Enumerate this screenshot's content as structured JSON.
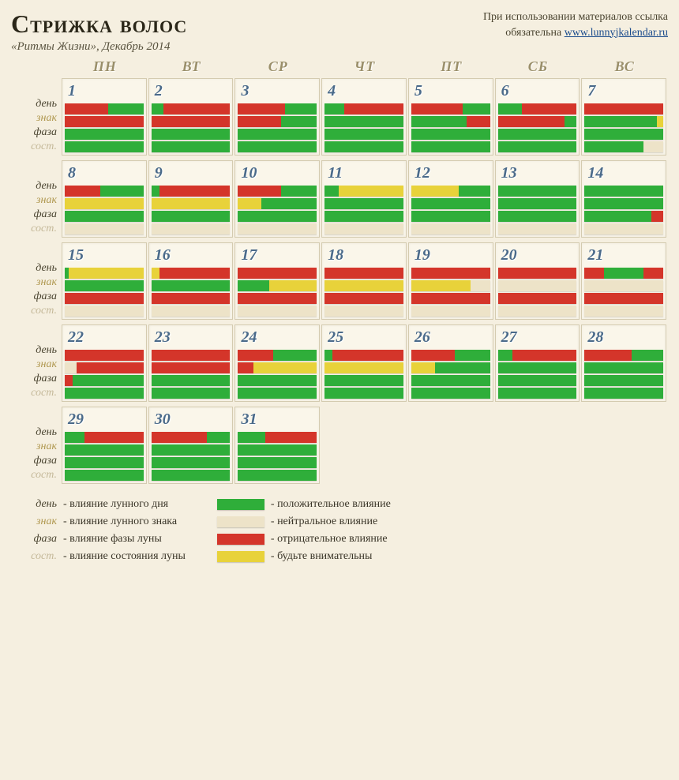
{
  "header": {
    "title": "Стрижка волос",
    "subtitle": "«Ритмы Жизни», Декабрь 2014",
    "credit_line1": "При использовании материалов ссылка",
    "credit_line2": "обязательна",
    "link_text": "www.lunnyjkalendar.ru"
  },
  "weekdays": [
    "ПН",
    "ВТ",
    "СР",
    "ЧТ",
    "ПТ",
    "СБ",
    "ВС"
  ],
  "row_labels": [
    "день",
    "знак",
    "фаза",
    "сост."
  ],
  "row_label_classes": [
    "lbl-day",
    "lbl-sign",
    "lbl-phase",
    "lbl-state"
  ],
  "colors": {
    "g": "#2fae3a",
    "r": "#d4352a",
    "y": "#e8d23a",
    "n": "#ede3c8",
    "bg": "#f5efe0",
    "cell": "#faf6ea",
    "border": "#d4cbb0"
  },
  "legend_left": [
    {
      "label": "день",
      "text": "- влияние лунного дня",
      "cls": "lbl-day"
    },
    {
      "label": "знак",
      "text": "- влияние лунного знака",
      "cls": "lbl-sign"
    },
    {
      "label": "фаза",
      "text": "- влияние фазы луны",
      "cls": "lbl-phase"
    },
    {
      "label": "сост.",
      "text": "- влияние состояния луны",
      "cls": "lbl-state"
    }
  ],
  "legend_right": [
    {
      "color": "g",
      "text": "- положительное влияние"
    },
    {
      "color": "n",
      "text": "- нейтральное влияние"
    },
    {
      "color": "r",
      "text": "- отрицательное влияние"
    },
    {
      "color": "y",
      "text": "- будьте внимательны"
    }
  ],
  "weeks": [
    [
      {
        "n": 1,
        "bars": [
          [
            [
              "r",
              0.55
            ],
            [
              "g",
              0.45
            ]
          ],
          [
            [
              "r",
              1
            ]
          ],
          [
            [
              "g",
              1
            ]
          ],
          [
            [
              "g",
              1
            ]
          ]
        ]
      },
      {
        "n": 2,
        "bars": [
          [
            [
              "g",
              0.15
            ],
            [
              "r",
              0.85
            ]
          ],
          [
            [
              "r",
              1
            ]
          ],
          [
            [
              "g",
              1
            ]
          ],
          [
            [
              "g",
              1
            ]
          ]
        ]
      },
      {
        "n": 3,
        "bars": [
          [
            [
              "r",
              0.6
            ],
            [
              "g",
              0.4
            ]
          ],
          [
            [
              "r",
              0.55
            ],
            [
              "g",
              0.45
            ]
          ],
          [
            [
              "g",
              1
            ]
          ],
          [
            [
              "g",
              1
            ]
          ]
        ]
      },
      {
        "n": 4,
        "bars": [
          [
            [
              "g",
              0.25
            ],
            [
              "r",
              0.75
            ]
          ],
          [
            [
              "g",
              1
            ]
          ],
          [
            [
              "g",
              1
            ]
          ],
          [
            [
              "g",
              1
            ]
          ]
        ]
      },
      {
        "n": 5,
        "bars": [
          [
            [
              "r",
              0.65
            ],
            [
              "g",
              0.35
            ]
          ],
          [
            [
              "g",
              0.7
            ],
            [
              "r",
              0.3
            ]
          ],
          [
            [
              "g",
              1
            ]
          ],
          [
            [
              "g",
              1
            ]
          ]
        ]
      },
      {
        "n": 6,
        "bars": [
          [
            [
              "g",
              0.3
            ],
            [
              "r",
              0.7
            ]
          ],
          [
            [
              "r",
              0.85
            ],
            [
              "g",
              0.15
            ]
          ],
          [
            [
              "g",
              1
            ]
          ],
          [
            [
              "g",
              1
            ]
          ]
        ]
      },
      {
        "n": 7,
        "bars": [
          [
            [
              "r",
              1
            ]
          ],
          [
            [
              "g",
              0.92
            ],
            [
              "y",
              0.08
            ]
          ],
          [
            [
              "g",
              1
            ]
          ],
          [
            [
              "g",
              0.75
            ],
            [
              "n",
              0.25
            ]
          ]
        ]
      }
    ],
    [
      {
        "n": 8,
        "bars": [
          [
            [
              "r",
              0.45
            ],
            [
              "g",
              0.55
            ]
          ],
          [
            [
              "y",
              1
            ]
          ],
          [
            [
              "g",
              1
            ]
          ],
          [
            [
              "n",
              1
            ]
          ]
        ]
      },
      {
        "n": 9,
        "bars": [
          [
            [
              "g",
              0.1
            ],
            [
              "r",
              0.9
            ]
          ],
          [
            [
              "y",
              1
            ]
          ],
          [
            [
              "g",
              1
            ]
          ],
          [
            [
              "n",
              1
            ]
          ]
        ]
      },
      {
        "n": 10,
        "bars": [
          [
            [
              "r",
              0.55
            ],
            [
              "g",
              0.45
            ]
          ],
          [
            [
              "y",
              0.3
            ],
            [
              "g",
              0.7
            ]
          ],
          [
            [
              "g",
              1
            ]
          ],
          [
            [
              "n",
              1
            ]
          ]
        ]
      },
      {
        "n": 11,
        "bars": [
          [
            [
              "g",
              0.18
            ],
            [
              "y",
              0.82
            ]
          ],
          [
            [
              "g",
              1
            ]
          ],
          [
            [
              "g",
              1
            ]
          ],
          [
            [
              "n",
              1
            ]
          ]
        ]
      },
      {
        "n": 12,
        "bars": [
          [
            [
              "y",
              0.6
            ],
            [
              "g",
              0.4
            ]
          ],
          [
            [
              "g",
              1
            ]
          ],
          [
            [
              "g",
              1
            ]
          ],
          [
            [
              "n",
              1
            ]
          ]
        ]
      },
      {
        "n": 13,
        "bars": [
          [
            [
              "g",
              1
            ]
          ],
          [
            [
              "g",
              1
            ]
          ],
          [
            [
              "g",
              1
            ]
          ],
          [
            [
              "n",
              1
            ]
          ]
        ]
      },
      {
        "n": 14,
        "bars": [
          [
            [
              "g",
              1
            ]
          ],
          [
            [
              "g",
              1
            ]
          ],
          [
            [
              "g",
              0.85
            ],
            [
              "r",
              0.15
            ]
          ],
          [
            [
              "n",
              1
            ]
          ]
        ]
      }
    ],
    [
      {
        "n": 15,
        "bars": [
          [
            [
              "g",
              0.05
            ],
            [
              "y",
              0.95
            ]
          ],
          [
            [
              "g",
              1
            ]
          ],
          [
            [
              "r",
              1
            ]
          ],
          [
            [
              "n",
              1
            ]
          ]
        ]
      },
      {
        "n": 16,
        "bars": [
          [
            [
              "y",
              0.1
            ],
            [
              "r",
              0.9
            ]
          ],
          [
            [
              "g",
              1
            ]
          ],
          [
            [
              "r",
              1
            ]
          ],
          [
            [
              "n",
              1
            ]
          ]
        ]
      },
      {
        "n": 17,
        "bars": [
          [
            [
              "r",
              1
            ]
          ],
          [
            [
              "g",
              0.4
            ],
            [
              "y",
              0.6
            ]
          ],
          [
            [
              "r",
              1
            ]
          ],
          [
            [
              "n",
              1
            ]
          ]
        ]
      },
      {
        "n": 18,
        "bars": [
          [
            [
              "r",
              1
            ]
          ],
          [
            [
              "y",
              1
            ]
          ],
          [
            [
              "r",
              1
            ]
          ],
          [
            [
              "n",
              1
            ]
          ]
        ]
      },
      {
        "n": 19,
        "bars": [
          [
            [
              "r",
              1
            ]
          ],
          [
            [
              "y",
              0.75
            ],
            [
              "n",
              0.25
            ]
          ],
          [
            [
              "r",
              1
            ]
          ],
          [
            [
              "n",
              1
            ]
          ]
        ]
      },
      {
        "n": 20,
        "bars": [
          [
            [
              "r",
              1
            ]
          ],
          [
            [
              "n",
              1
            ]
          ],
          [
            [
              "r",
              1
            ]
          ],
          [
            [
              "n",
              1
            ]
          ]
        ]
      },
      {
        "n": 21,
        "bars": [
          [
            [
              "r",
              0.25
            ],
            [
              "g",
              0.5
            ],
            [
              "r",
              0.25
            ]
          ],
          [
            [
              "n",
              1
            ]
          ],
          [
            [
              "r",
              1
            ]
          ],
          [
            [
              "n",
              1
            ]
          ]
        ]
      }
    ],
    [
      {
        "n": 22,
        "bars": [
          [
            [
              "r",
              1
            ]
          ],
          [
            [
              "n",
              0.15
            ],
            [
              "r",
              0.85
            ]
          ],
          [
            [
              "r",
              0.1
            ],
            [
              "g",
              0.9
            ]
          ],
          [
            [
              "g",
              1
            ]
          ]
        ]
      },
      {
        "n": 23,
        "bars": [
          [
            [
              "r",
              1
            ]
          ],
          [
            [
              "r",
              1
            ]
          ],
          [
            [
              "g",
              1
            ]
          ],
          [
            [
              "g",
              1
            ]
          ]
        ]
      },
      {
        "n": 24,
        "bars": [
          [
            [
              "r",
              0.45
            ],
            [
              "g",
              0.55
            ]
          ],
          [
            [
              "r",
              0.2
            ],
            [
              "y",
              0.8
            ]
          ],
          [
            [
              "g",
              1
            ]
          ],
          [
            [
              "g",
              1
            ]
          ]
        ]
      },
      {
        "n": 25,
        "bars": [
          [
            [
              "g",
              0.1
            ],
            [
              "r",
              0.9
            ]
          ],
          [
            [
              "y",
              1
            ]
          ],
          [
            [
              "g",
              1
            ]
          ],
          [
            [
              "g",
              1
            ]
          ]
        ]
      },
      {
        "n": 26,
        "bars": [
          [
            [
              "r",
              0.55
            ],
            [
              "g",
              0.45
            ]
          ],
          [
            [
              "y",
              0.3
            ],
            [
              "g",
              0.7
            ]
          ],
          [
            [
              "g",
              1
            ]
          ],
          [
            [
              "g",
              1
            ]
          ]
        ]
      },
      {
        "n": 27,
        "bars": [
          [
            [
              "g",
              0.18
            ],
            [
              "r",
              0.82
            ]
          ],
          [
            [
              "g",
              1
            ]
          ],
          [
            [
              "g",
              1
            ]
          ],
          [
            [
              "g",
              1
            ]
          ]
        ]
      },
      {
        "n": 28,
        "bars": [
          [
            [
              "r",
              0.6
            ],
            [
              "g",
              0.4
            ]
          ],
          [
            [
              "g",
              1
            ]
          ],
          [
            [
              "g",
              1
            ]
          ],
          [
            [
              "g",
              1
            ]
          ]
        ]
      }
    ],
    [
      {
        "n": 29,
        "bars": [
          [
            [
              "g",
              0.25
            ],
            [
              "r",
              0.75
            ]
          ],
          [
            [
              "g",
              1
            ]
          ],
          [
            [
              "g",
              1
            ]
          ],
          [
            [
              "g",
              1
            ]
          ]
        ]
      },
      {
        "n": 30,
        "bars": [
          [
            [
              "r",
              0.7
            ],
            [
              "g",
              0.3
            ]
          ],
          [
            [
              "g",
              1
            ]
          ],
          [
            [
              "g",
              1
            ]
          ],
          [
            [
              "g",
              1
            ]
          ]
        ]
      },
      {
        "n": 31,
        "bars": [
          [
            [
              "g",
              0.35
            ],
            [
              "r",
              0.65
            ]
          ],
          [
            [
              "g",
              1
            ]
          ],
          [
            [
              "g",
              1
            ]
          ],
          [
            [
              "g",
              1
            ]
          ]
        ]
      },
      null,
      null,
      null,
      null
    ]
  ]
}
